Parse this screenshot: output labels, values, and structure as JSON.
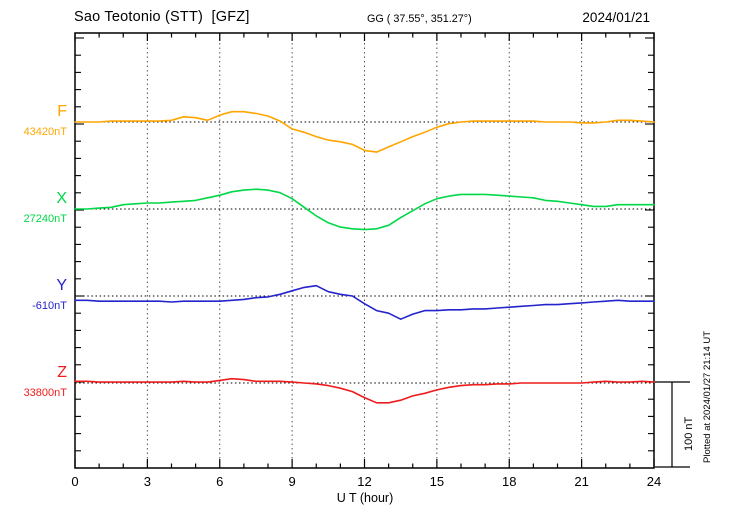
{
  "header": {
    "station_title": "Sao Teotonio (STT)  [GFZ]",
    "coordinates": "GG ( 37.55°, 351.27°)",
    "date": "2024/01/21"
  },
  "axis": {
    "x_label": "U T (hour)",
    "x_ticks": [
      0,
      3,
      6,
      9,
      12,
      15,
      18,
      21,
      24
    ]
  },
  "scale_bar": {
    "label": "100 nT"
  },
  "footer_note": "Plotted at 2024/01/27 21:14 UT",
  "chart_data": {
    "type": "line",
    "title": "Sao Teotonio (STT) [GFZ] magnetogram 2024/01/21",
    "xlabel": "U T (hour)",
    "xlim": [
      0,
      24
    ],
    "x_step_hours": 0.5,
    "grid": "dotted vertical every 3 h, dotted horizontal baseline per trace",
    "amplitude_reference": "100 nT bar at lower right",
    "x": [
      0,
      0.5,
      1,
      1.5,
      2,
      2.5,
      3,
      3.5,
      4,
      4.5,
      5,
      5.5,
      6,
      6.5,
      7,
      7.5,
      8,
      8.5,
      9,
      9.5,
      10,
      10.5,
      11,
      11.5,
      12,
      12.5,
      13,
      13.5,
      14,
      14.5,
      15,
      15.5,
      16,
      16.5,
      17,
      17.5,
      18,
      18.5,
      19,
      19.5,
      20,
      20.5,
      21,
      21.5,
      22,
      22.5,
      23,
      23.5,
      24
    ],
    "series": [
      {
        "name": "F",
        "color": "#FFA500",
        "baseline_label": "43420nT",
        "base_nT": 43420,
        "values_nT": [
          43420,
          43420,
          43420,
          43421,
          43421,
          43421,
          43421,
          43421,
          43422,
          43426,
          43425,
          43422,
          43428,
          43432,
          43432,
          43430,
          43427,
          43421,
          43412,
          43408,
          43403,
          43399,
          43397,
          43394,
          43387,
          43385,
          43391,
          43397,
          43403,
          43408,
          43414,
          43418,
          43420,
          43421,
          43421,
          43421,
          43421,
          43421,
          43421,
          43420,
          43420,
          43420,
          43419,
          43419,
          43420,
          43422,
          43422,
          43421,
          43420
        ]
      },
      {
        "name": "X",
        "color": "#00D848",
        "baseline_label": "27240nT",
        "base_nT": 27240,
        "values_nT": [
          27240,
          27240,
          27241,
          27242,
          27245,
          27246,
          27247,
          27247,
          27248,
          27249,
          27250,
          27253,
          27256,
          27260,
          27262,
          27263,
          27262,
          27259,
          27252,
          27242,
          27232,
          27224,
          27219,
          27217,
          27216,
          27217,
          27221,
          27230,
          27238,
          27246,
          27252,
          27255,
          27257,
          27257,
          27257,
          27256,
          27255,
          27254,
          27253,
          27250,
          27249,
          27247,
          27245,
          27243,
          27243,
          27245,
          27245,
          27245,
          27245
        ]
      },
      {
        "name": "Y",
        "color": "#2424CC",
        "baseline_label": "-610nT",
        "base_nT": -610,
        "values_nT": [
          -615,
          -615,
          -616,
          -616,
          -616,
          -616,
          -616,
          -616,
          -617,
          -616,
          -616,
          -616,
          -616,
          -615,
          -614,
          -612,
          -611,
          -608,
          -604,
          -600,
          -598,
          -605,
          -608,
          -610,
          -619,
          -627,
          -630,
          -637,
          -631,
          -627,
          -627,
          -626,
          -626,
          -625,
          -625,
          -624,
          -623,
          -622,
          -621,
          -620,
          -620,
          -619,
          -618,
          -617,
          -616,
          -615,
          -616,
          -616,
          -616
        ]
      },
      {
        "name": "Z",
        "color": "#EE1C1C",
        "baseline_label": "33800nT",
        "base_nT": 33800,
        "values_nT": [
          33802,
          33802,
          33801,
          33801,
          33801,
          33801,
          33801,
          33801,
          33801,
          33802,
          33801,
          33801,
          33803,
          33805,
          33804,
          33802,
          33802,
          33802,
          33801,
          33800,
          33799,
          33797,
          33794,
          33790,
          33783,
          33777,
          33777,
          33780,
          33785,
          33788,
          33792,
          33795,
          33797,
          33798,
          33798,
          33799,
          33799,
          33800,
          33800,
          33800,
          33800,
          33800,
          33800,
          33801,
          33802,
          33801,
          33801,
          33802,
          33801
        ]
      }
    ]
  }
}
